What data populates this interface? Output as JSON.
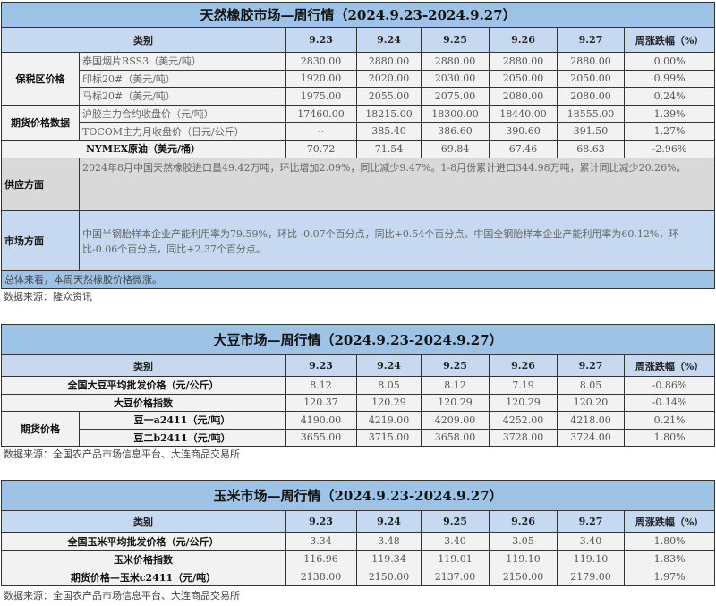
{
  "rubber": {
    "title": "天然橡胶市场—周行情（2024.9.23-2024.9.27）",
    "header": {
      "category": "类别",
      "dates": [
        "9.23",
        "9.24",
        "9.25",
        "9.26",
        "9.27"
      ],
      "change": "周涨跌幅（%）"
    },
    "groups": [
      {
        "label": "保税区价格",
        "rows": [
          {
            "name": "泰国烟片RSS3（美元/吨）",
            "values": [
              "2830.00",
              "2880.00",
              "2880.00",
              "2880.00",
              "2880.00"
            ],
            "change": "0.00%"
          },
          {
            "name": "印标20#（美元/吨）",
            "values": [
              "1920.00",
              "2020.00",
              "2030.00",
              "2050.00",
              "2050.00"
            ],
            "change": "0.99%"
          },
          {
            "name": "马标20#（美元/吨）",
            "values": [
              "1975.00",
              "2055.00",
              "2075.00",
              "2080.00",
              "2080.00"
            ],
            "change": "0.24%"
          }
        ]
      },
      {
        "label": "期货价格数据",
        "rows": [
          {
            "name": "沪胶主力合约收盘价（元/吨）",
            "values": [
              "17460.00",
              "18215.00",
              "18300.00",
              "18440.00",
              "18555.00"
            ],
            "change": "1.39%"
          },
          {
            "name": "TOCOM主力月收盘价（日元/公斤）",
            "values": [
              "--",
              "385.40",
              "386.60",
              "390.60",
              "391.50"
            ],
            "change": "1.27%"
          }
        ]
      }
    ],
    "single_rows": [
      {
        "name": "NYMEX原油（美元/桶）",
        "values": [
          "70.72",
          "71.54",
          "69.84",
          "67.46",
          "68.63"
        ],
        "change": "-2.96%"
      }
    ],
    "supply": {
      "label": "供应方面",
      "text": "2024年8月中国天然橡胶进口量49.42万吨，环比增加2.09%，同比减少9.47%。1-8月份累计进口344.98万吨，累计同比减少20.26%。"
    },
    "market": {
      "label": "市场方面",
      "text": "中国半钢胎样本企业产能利用率为79.59%，环比 -0.07个百分点，同比+0.54个百分点。中国全钢胎样本企业产能利用率为60.12%，环比-0.06个百分点，同比+2.37个百分点。"
    },
    "summary": "总体来看，本周天然橡胶价格微涨。",
    "source": "数据来源：隆众资讯"
  },
  "soybean": {
    "title": "大豆市场—周行情（2024.9.23-2024.9.27）",
    "header": {
      "category": "类别",
      "dates": [
        "9.23",
        "9.24",
        "9.25",
        "9.26",
        "9.27"
      ],
      "change": "周涨跌幅（%）"
    },
    "single_rows": [
      {
        "name": "全国大豆平均批发价格（元/公斤）",
        "values": [
          "8.12",
          "8.05",
          "8.12",
          "7.19",
          "8.05"
        ],
        "change": "-0.86%"
      },
      {
        "name": "大豆价格指数",
        "values": [
          "120.37",
          "120.29",
          "120.29",
          "120.29",
          "120.20"
        ],
        "change": "-0.14%"
      }
    ],
    "groups": [
      {
        "label": "期货价格",
        "rows": [
          {
            "name": "豆一a2411（元/吨）",
            "values": [
              "4190.00",
              "4219.00",
              "4209.00",
              "4252.00",
              "4218.00"
            ],
            "change": "0.21%"
          },
          {
            "name": "豆二b2411（元/吨）",
            "values": [
              "3655.00",
              "3715.00",
              "3658.00",
              "3728.00",
              "3724.00"
            ],
            "change": "1.80%"
          }
        ]
      }
    ],
    "source": "数据来源：全国农产品市场信息平台、大连商品交易所"
  },
  "corn": {
    "title": "玉米市场—周行情（2024.9.23-2024.9.27）",
    "header": {
      "category": "类别",
      "dates": [
        "9.23",
        "9.24",
        "9.25",
        "9.26",
        "9.27"
      ],
      "change": "周涨跌幅（%）"
    },
    "single_rows": [
      {
        "name": "全国玉米平均批发价格（元/公斤）",
        "values": [
          "3.34",
          "3.48",
          "3.40",
          "3.05",
          "3.40"
        ],
        "change": "1.80%"
      },
      {
        "name": "玉米价格指数",
        "values": [
          "116.96",
          "119.34",
          "119.01",
          "119.10",
          "119.10"
        ],
        "change": "1.83%"
      },
      {
        "name": "期货价格—玉米c2411（元/吨）",
        "values": [
          "2138.00",
          "2150.00",
          "2137.00",
          "2150.00",
          "2179.00"
        ],
        "change": "1.97%"
      }
    ],
    "source": "数据来源：全国农产品市场信息平台、大连商品交易所"
  }
}
